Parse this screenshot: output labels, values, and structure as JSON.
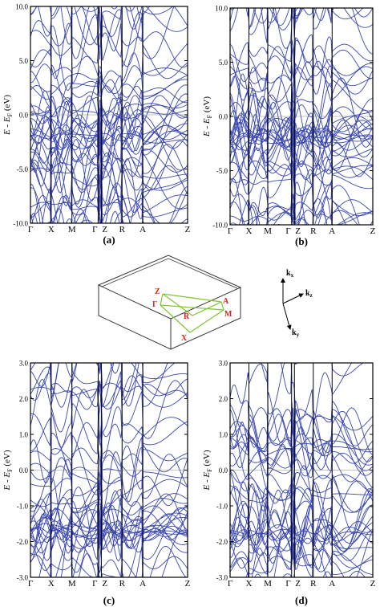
{
  "colors": {
    "band": "#3a47b0",
    "axis": "#000000",
    "bz_box": "#333333",
    "bz_path": "#7dc531",
    "bz_label": "#e0201c"
  },
  "chart_data": [
    {
      "type": "line",
      "panel_label": "(a)",
      "ylabel": "E - E_F (eV)",
      "ylim": [
        -10,
        10
      ],
      "yticks": [
        "10.0",
        "5.0",
        "0.0",
        "-5.0",
        "-10.0"
      ],
      "ytick_values": [
        10,
        5,
        0,
        -5,
        -10
      ],
      "kpoints": [
        "Γ",
        "X",
        "M",
        "Γ",
        "Z",
        "R",
        "A",
        "Z"
      ],
      "kpoint_positions": [
        0,
        0.132,
        0.264,
        0.431,
        0.451,
        0.583,
        0.715,
        1.0
      ],
      "fermi_level": 0,
      "seed": 11
    },
    {
      "type": "line",
      "panel_label": "(b)",
      "ylabel": "E - E_F (eV)",
      "ylim": [
        -10,
        10
      ],
      "yticks": [
        "10.0",
        "5.0",
        "0.0",
        "-5.0",
        "-10.0"
      ],
      "ytick_values": [
        10,
        5,
        0,
        -5,
        -10
      ],
      "kpoints": [
        "Γ",
        "X",
        "M",
        "Γ",
        "Z",
        "R",
        "A",
        "Z"
      ],
      "kpoint_positions": [
        0,
        0.132,
        0.264,
        0.431,
        0.451,
        0.583,
        0.715,
        1.0
      ],
      "fermi_level": 0,
      "seed": 23
    },
    {
      "type": "line",
      "panel_label": "(c)",
      "ylabel": "E - E_F (eV)",
      "ylim": [
        -3,
        3
      ],
      "yticks": [
        "3.0",
        "2.0",
        "1.0",
        "0.0",
        "-1.0",
        "-2.0",
        "-3.0"
      ],
      "ytick_values": [
        3,
        2,
        1,
        0,
        -1,
        -2,
        -3
      ],
      "kpoints": [
        "Γ",
        "X",
        "M",
        "Γ",
        "Z",
        "R",
        "A",
        "Z"
      ],
      "kpoint_positions": [
        0,
        0.132,
        0.264,
        0.431,
        0.451,
        0.583,
        0.715,
        1.0
      ],
      "fermi_level": 0,
      "seed": 37
    },
    {
      "type": "line",
      "panel_label": "(d)",
      "ylabel": "E - E_F (eV)",
      "ylim": [
        -3,
        3
      ],
      "yticks": [
        "3.0",
        "2.0",
        "1.0",
        "0.0",
        "-1.0",
        "-2.0",
        "-3.0"
      ],
      "ytick_values": [
        3,
        2,
        1,
        0,
        -1,
        -2,
        -3
      ],
      "kpoints": [
        "Γ",
        "X",
        "M",
        "Γ",
        "Z",
        "R",
        "A",
        "Z"
      ],
      "kpoint_positions": [
        0,
        0.132,
        0.264,
        0.431,
        0.451,
        0.583,
        0.715,
        1.0
      ],
      "fermi_level": 0,
      "seed": 53
    }
  ],
  "brillouin_zone": {
    "points": [
      "Z",
      "Γ",
      "R",
      "X",
      "A",
      "M"
    ],
    "axes": [
      "k_x",
      "k_z",
      "k_y"
    ]
  }
}
